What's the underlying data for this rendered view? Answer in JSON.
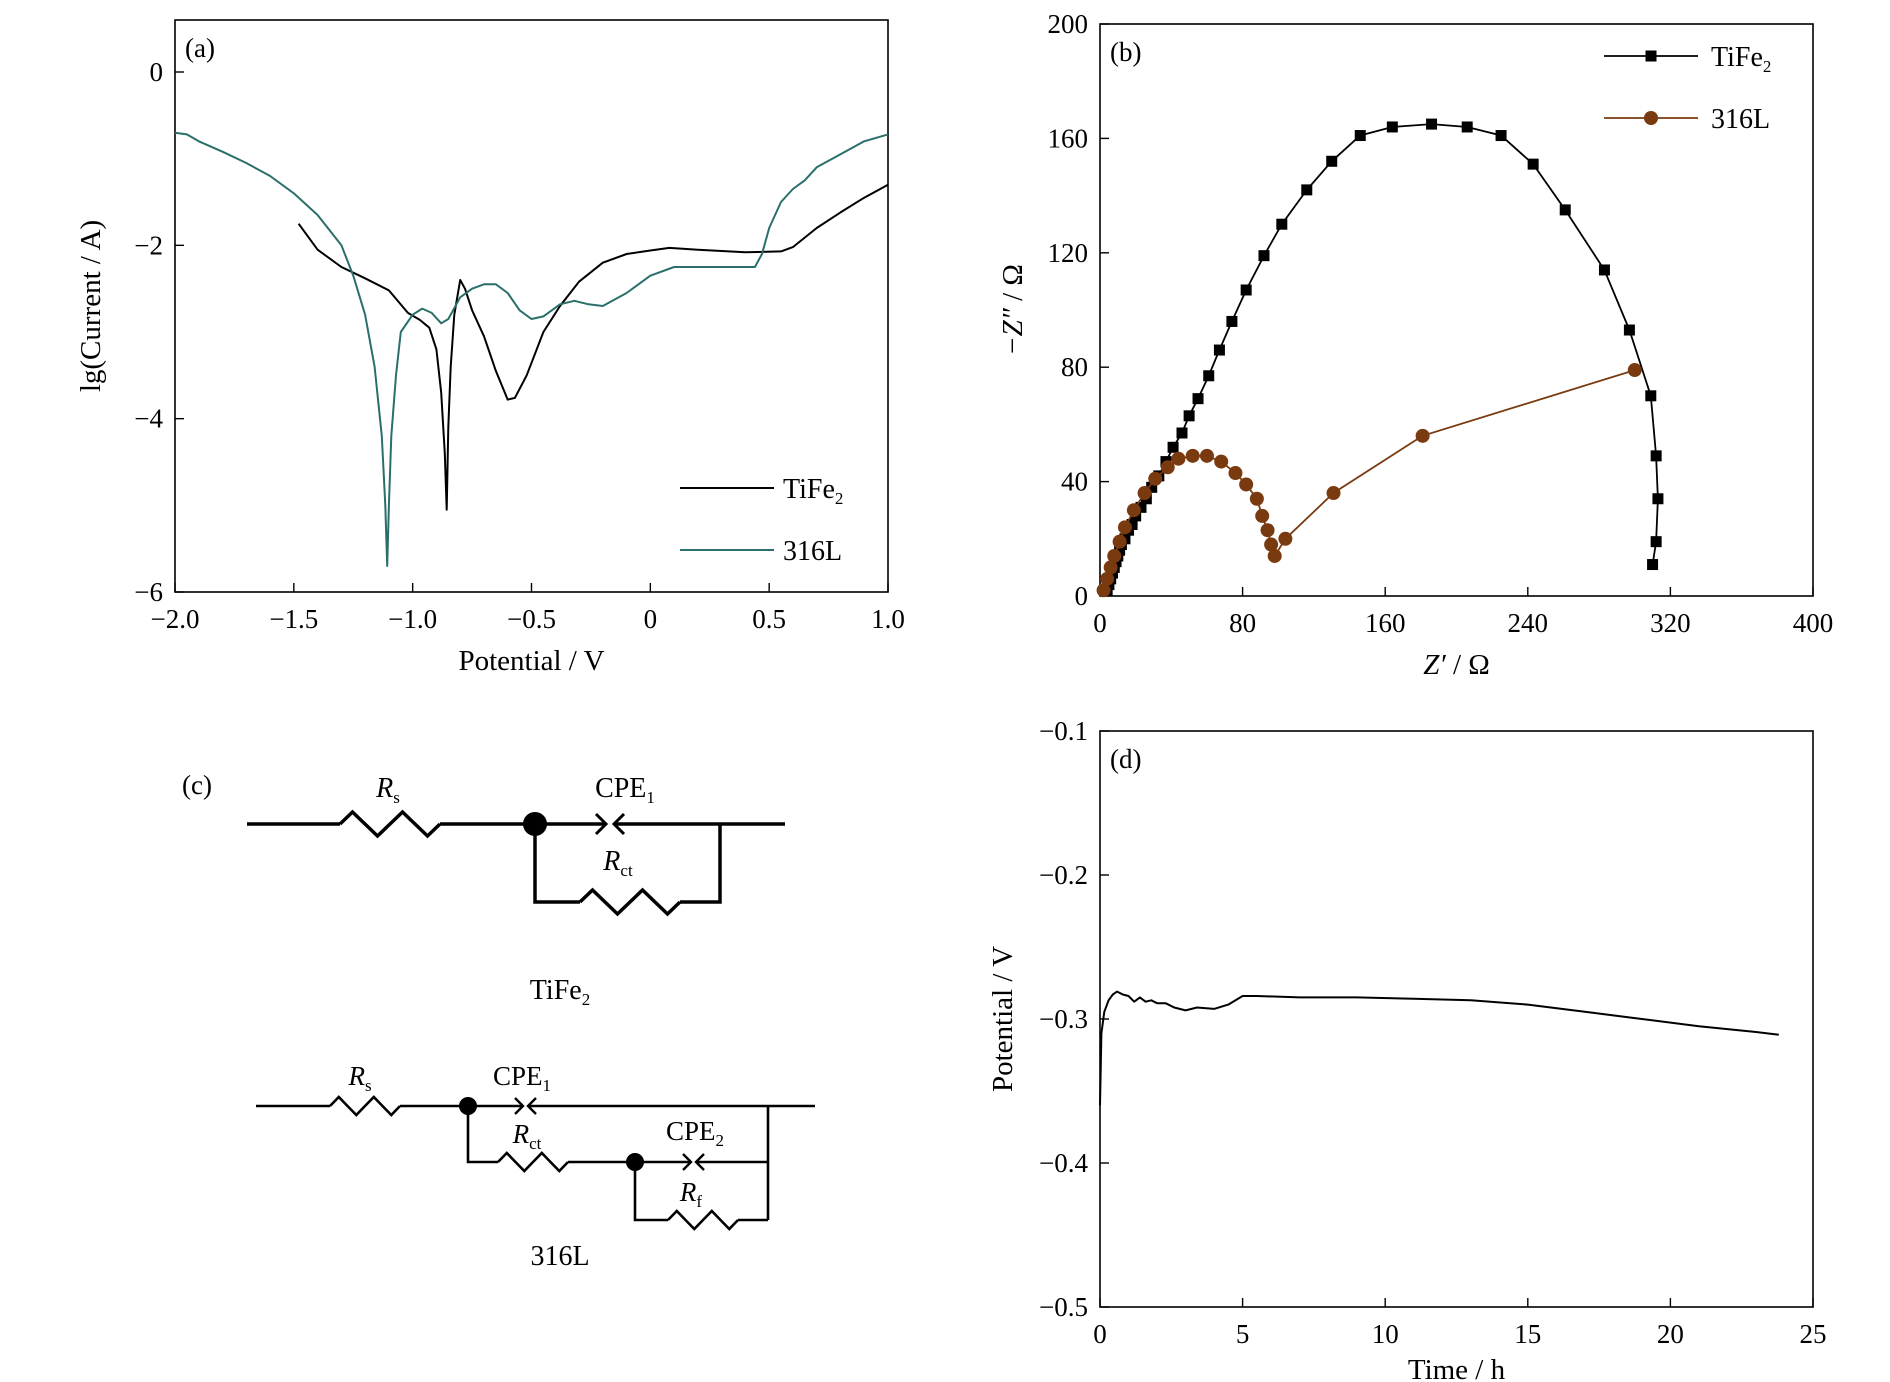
{
  "chart_data": [
    {
      "panel": "(a)",
      "type": "line",
      "xlabel": "Potential / V",
      "ylabel": "lg(Current / A)",
      "xlim": [
        -2.0,
        1.0
      ],
      "ylim": [
        -6,
        0.6
      ],
      "xticks": [
        -2.0,
        -1.5,
        -1.0,
        -0.5,
        0,
        0.5,
        1.0
      ],
      "xtick_labels": [
        "−2.0",
        "−1.5",
        "−1.0",
        "−0.5",
        "0",
        "0.5",
        "1.0"
      ],
      "yticks": [
        0,
        -2,
        -4,
        -6
      ],
      "ytick_labels": [
        "0",
        "−2",
        "−4",
        "−6"
      ],
      "legend_position": "bottom-right",
      "series": [
        {
          "name": "TiFe",
          "name_sub": "2",
          "color": "#000000",
          "points": [
            [
              -1.48,
              -1.75
            ],
            [
              -1.4,
              -2.05
            ],
            [
              -1.3,
              -2.25
            ],
            [
              -1.2,
              -2.38
            ],
            [
              -1.1,
              -2.52
            ],
            [
              -1.02,
              -2.78
            ],
            [
              -0.97,
              -2.86
            ],
            [
              -0.93,
              -2.95
            ],
            [
              -0.9,
              -3.2
            ],
            [
              -0.88,
              -3.7
            ],
            [
              -0.865,
              -4.4
            ],
            [
              -0.857,
              -5.05
            ],
            [
              -0.85,
              -4.1
            ],
            [
              -0.84,
              -3.4
            ],
            [
              -0.825,
              -2.8
            ],
            [
              -0.8,
              -2.4
            ],
            [
              -0.78,
              -2.5
            ],
            [
              -0.75,
              -2.75
            ],
            [
              -0.7,
              -3.05
            ],
            [
              -0.65,
              -3.45
            ],
            [
              -0.6,
              -3.78
            ],
            [
              -0.57,
              -3.76
            ],
            [
              -0.52,
              -3.5
            ],
            [
              -0.45,
              -3.0
            ],
            [
              -0.38,
              -2.7
            ],
            [
              -0.3,
              -2.42
            ],
            [
              -0.2,
              -2.2
            ],
            [
              -0.1,
              -2.1
            ],
            [
              0.0,
              -2.06
            ],
            [
              0.08,
              -2.03
            ],
            [
              0.2,
              -2.05
            ],
            [
              0.4,
              -2.08
            ],
            [
              0.55,
              -2.07
            ],
            [
              0.6,
              -2.02
            ],
            [
              0.7,
              -1.8
            ],
            [
              0.8,
              -1.62
            ],
            [
              0.9,
              -1.45
            ],
            [
              1.0,
              -1.3
            ]
          ]
        },
        {
          "name": "316L",
          "color": "#2a6f6a",
          "points": [
            [
              -2.0,
              -0.7
            ],
            [
              -1.95,
              -0.72
            ],
            [
              -1.9,
              -0.8
            ],
            [
              -1.8,
              -0.92
            ],
            [
              -1.7,
              -1.05
            ],
            [
              -1.6,
              -1.2
            ],
            [
              -1.5,
              -1.4
            ],
            [
              -1.4,
              -1.65
            ],
            [
              -1.3,
              -2.0
            ],
            [
              -1.25,
              -2.35
            ],
            [
              -1.2,
              -2.8
            ],
            [
              -1.16,
              -3.4
            ],
            [
              -1.13,
              -4.2
            ],
            [
              -1.115,
              -5.0
            ],
            [
              -1.107,
              -5.7
            ],
            [
              -1.1,
              -5.0
            ],
            [
              -1.09,
              -4.2
            ],
            [
              -1.07,
              -3.5
            ],
            [
              -1.05,
              -3.0
            ],
            [
              -1.0,
              -2.8
            ],
            [
              -0.96,
              -2.73
            ],
            [
              -0.92,
              -2.78
            ],
            [
              -0.88,
              -2.9
            ],
            [
              -0.85,
              -2.85
            ],
            [
              -0.8,
              -2.6
            ],
            [
              -0.75,
              -2.5
            ],
            [
              -0.7,
              -2.45
            ],
            [
              -0.65,
              -2.45
            ],
            [
              -0.6,
              -2.55
            ],
            [
              -0.55,
              -2.75
            ],
            [
              -0.5,
              -2.85
            ],
            [
              -0.45,
              -2.82
            ],
            [
              -0.38,
              -2.68
            ],
            [
              -0.32,
              -2.64
            ],
            [
              -0.26,
              -2.68
            ],
            [
              -0.2,
              -2.7
            ],
            [
              -0.1,
              -2.55
            ],
            [
              0.0,
              -2.35
            ],
            [
              0.1,
              -2.25
            ],
            [
              0.2,
              -2.25
            ],
            [
              0.3,
              -2.25
            ],
            [
              0.44,
              -2.25
            ],
            [
              0.47,
              -2.1
            ],
            [
              0.5,
              -1.8
            ],
            [
              0.55,
              -1.5
            ],
            [
              0.6,
              -1.35
            ],
            [
              0.65,
              -1.25
            ],
            [
              0.7,
              -1.1
            ],
            [
              0.8,
              -0.95
            ],
            [
              0.9,
              -0.8
            ],
            [
              1.0,
              -0.72
            ]
          ]
        }
      ]
    },
    {
      "panel": "(b)",
      "type": "line",
      "xlabel_italic": "Z′",
      "xlabel_rest": " / Ω",
      "ylabel_italic": "−Z″",
      "ylabel_rest": " / Ω",
      "xlim": [
        0,
        400
      ],
      "ylim": [
        0,
        200
      ],
      "xticks": [
        0,
        80,
        160,
        240,
        320,
        400
      ],
      "xtick_labels": [
        "0",
        "80",
        "160",
        "240",
        "320",
        "400"
      ],
      "yticks": [
        0,
        40,
        80,
        120,
        160,
        200
      ],
      "ytick_labels": [
        "0",
        "40",
        "80",
        "120",
        "160",
        "200"
      ],
      "legend_position": "top-right",
      "series": [
        {
          "name": "TiFe",
          "name_sub": "2",
          "color": "#000000",
          "marker": "square",
          "points": [
            [
              4,
              2
            ],
            [
              5,
              4
            ],
            [
              6,
              6
            ],
            [
              7,
              8
            ],
            [
              8,
              10
            ],
            [
              9,
              12
            ],
            [
              10,
              14
            ],
            [
              11,
              16
            ],
            [
              12,
              18
            ],
            [
              14,
              20
            ],
            [
              16,
              23
            ],
            [
              18,
              25
            ],
            [
              20,
              28
            ],
            [
              23,
              31
            ],
            [
              26,
              34
            ],
            [
              29,
              38
            ],
            [
              33,
              42
            ],
            [
              37,
              47
            ],
            [
              41,
              52
            ],
            [
              46,
              57
            ],
            [
              50,
              63
            ],
            [
              55,
              69
            ],
            [
              61,
              77
            ],
            [
              67,
              86
            ],
            [
              74,
              96
            ],
            [
              82,
              107
            ],
            [
              92,
              119
            ],
            [
              102,
              130
            ],
            [
              116,
              142
            ],
            [
              130,
              152
            ],
            [
              146,
              161
            ],
            [
              164,
              164
            ],
            [
              186,
              165
            ],
            [
              206,
              164
            ],
            [
              225,
              161
            ],
            [
              243,
              151
            ],
            [
              261,
              135
            ],
            [
              283,
              114
            ],
            [
              297,
              93
            ],
            [
              309,
              70
            ],
            [
              312,
              49
            ],
            [
              313,
              34
            ],
            [
              312,
              19
            ],
            [
              310,
              11
            ]
          ]
        },
        {
          "name": "316L",
          "color": "#7a3a0f",
          "marker": "circle",
          "points": [
            [
              2,
              2
            ],
            [
              4,
              6
            ],
            [
              6,
              10
            ],
            [
              8,
              14
            ],
            [
              11,
              19
            ],
            [
              14,
              24
            ],
            [
              19,
              30
            ],
            [
              25,
              36
            ],
            [
              31,
              41
            ],
            [
              38,
              45
            ],
            [
              44,
              48
            ],
            [
              52,
              49
            ],
            [
              60,
              49
            ],
            [
              68,
              47
            ],
            [
              76,
              43
            ],
            [
              82,
              39
            ],
            [
              88,
              34
            ],
            [
              91,
              28
            ],
            [
              94,
              23
            ],
            [
              96,
              18
            ],
            [
              98,
              14
            ],
            [
              104,
              20
            ],
            [
              131,
              36
            ],
            [
              181,
              56
            ],
            [
              300,
              79
            ]
          ]
        }
      ]
    },
    {
      "panel": "(c)",
      "type": "diagram",
      "circuit1": {
        "Rs_main": "R",
        "Rs_sub": "s",
        "cpe_main": "CPE",
        "cpe_sub": "1",
        "Rct_main": "R",
        "Rct_sub": "ct",
        "caption_main": "TiFe",
        "caption_sub": "2"
      },
      "circuit2": {
        "Rs_main": "R",
        "Rs_sub": "s",
        "cpe1_main": "CPE",
        "cpe1_sub": "1",
        "Rct_main": "R",
        "Rct_sub": "ct",
        "cpe2_main": "CPE",
        "cpe2_sub": "2",
        "Rf_main": "R",
        "Rf_sub": "f",
        "caption": "316L"
      }
    },
    {
      "panel": "(d)",
      "type": "line",
      "xlabel": "Time / h",
      "ylabel": "Potential / V",
      "xlim": [
        0,
        25
      ],
      "ylim": [
        -0.5,
        -0.1
      ],
      "xticks": [
        0,
        5,
        10,
        15,
        20,
        25
      ],
      "xtick_labels": [
        "0",
        "5",
        "10",
        "15",
        "20",
        "25"
      ],
      "yticks": [
        -0.1,
        -0.2,
        -0.3,
        -0.4,
        -0.5
      ],
      "ytick_labels": [
        "−0.1",
        "−0.2",
        "−0.3",
        "−0.4",
        "−0.5"
      ],
      "series": [
        {
          "color": "#000000",
          "points": [
            [
              0.0,
              -0.36
            ],
            [
              0.05,
              -0.31
            ],
            [
              0.15,
              -0.295
            ],
            [
              0.3,
              -0.287
            ],
            [
              0.45,
              -0.283
            ],
            [
              0.6,
              -0.281
            ],
            [
              0.8,
              -0.283
            ],
            [
              1.0,
              -0.284
            ],
            [
              1.2,
              -0.288
            ],
            [
              1.4,
              -0.285
            ],
            [
              1.6,
              -0.288
            ],
            [
              1.8,
              -0.287
            ],
            [
              2.0,
              -0.289
            ],
            [
              2.3,
              -0.289
            ],
            [
              2.6,
              -0.292
            ],
            [
              3.0,
              -0.294
            ],
            [
              3.4,
              -0.292
            ],
            [
              4.0,
              -0.293
            ],
            [
              4.5,
              -0.29
            ],
            [
              5.0,
              -0.284
            ],
            [
              5.5,
              -0.284
            ],
            [
              7,
              -0.285
            ],
            [
              9,
              -0.285
            ],
            [
              11,
              -0.286
            ],
            [
              13,
              -0.287
            ],
            [
              15,
              -0.29
            ],
            [
              17,
              -0.295
            ],
            [
              19,
              -0.3
            ],
            [
              21,
              -0.305
            ],
            [
              23,
              -0.309
            ],
            [
              23.8,
              -0.311
            ]
          ]
        }
      ]
    }
  ]
}
